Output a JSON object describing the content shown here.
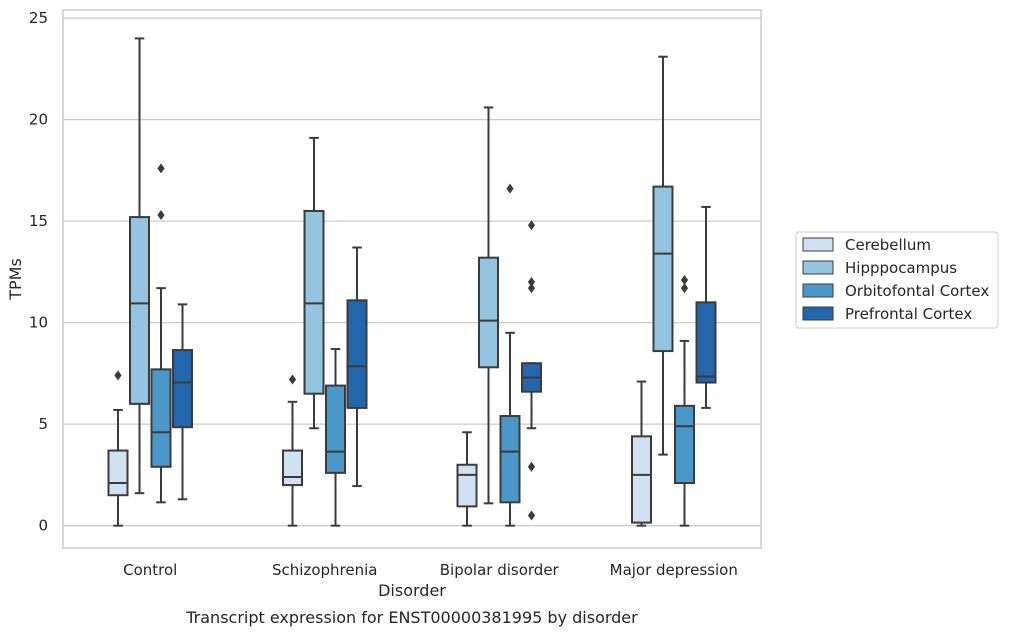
{
  "caption": "Transcript expression for ENST00000381995 by disorder",
  "chart_data": {
    "type": "box",
    "xlabel": "Disorder",
    "ylabel": "TPMs",
    "ylim": [
      -1.1,
      25.4
    ],
    "yticks": [
      0,
      5,
      10,
      15,
      20,
      25
    ],
    "grid": "horizontal",
    "legend_position": "right",
    "categories": [
      "Control",
      "Schizophrenia",
      "Bipolar disorder",
      "Major depression"
    ],
    "series": [
      {
        "name": "Cerebellum",
        "color": "#d0e1f2",
        "boxes": [
          {
            "whisker_low": 0.0,
            "q1": 1.5,
            "median": 2.1,
            "q3": 3.7,
            "whisker_high": 5.7,
            "outliers": [
              7.4
            ]
          },
          {
            "whisker_low": 0.0,
            "q1": 2.0,
            "median": 2.4,
            "q3": 3.7,
            "whisker_high": 6.1,
            "outliers": [
              7.2
            ]
          },
          {
            "whisker_low": 0.0,
            "q1": 0.95,
            "median": 2.5,
            "q3": 3.0,
            "whisker_high": 4.6,
            "outliers": []
          },
          {
            "whisker_low": 0.0,
            "q1": 0.15,
            "median": 2.5,
            "q3": 4.4,
            "whisker_high": 7.1,
            "outliers": []
          }
        ]
      },
      {
        "name": "Hipppocampus",
        "color": "#94c4df",
        "boxes": [
          {
            "whisker_low": 1.6,
            "q1": 6.0,
            "median": 10.95,
            "q3": 15.2,
            "whisker_high": 24.0,
            "outliers": []
          },
          {
            "whisker_low": 4.8,
            "q1": 6.5,
            "median": 10.95,
            "q3": 15.5,
            "whisker_high": 19.1,
            "outliers": []
          },
          {
            "whisker_low": 1.1,
            "q1": 7.8,
            "median": 10.1,
            "q3": 13.2,
            "whisker_high": 20.6,
            "outliers": []
          },
          {
            "whisker_low": 3.5,
            "q1": 8.6,
            "median": 13.4,
            "q3": 16.7,
            "whisker_high": 23.1,
            "outliers": []
          }
        ]
      },
      {
        "name": "Orbitofontal Cortex",
        "color": "#4a98c9",
        "boxes": [
          {
            "whisker_low": 1.15,
            "q1": 2.9,
            "median": 4.6,
            "q3": 7.7,
            "whisker_high": 11.7,
            "outliers": [
              15.3,
              17.6
            ]
          },
          {
            "whisker_low": 0.0,
            "q1": 2.6,
            "median": 3.65,
            "q3": 6.9,
            "whisker_high": 8.7,
            "outliers": []
          },
          {
            "whisker_low": 0.0,
            "q1": 1.15,
            "median": 3.65,
            "q3": 5.4,
            "whisker_high": 9.5,
            "outliers": [
              16.6
            ]
          },
          {
            "whisker_low": 0.0,
            "q1": 2.1,
            "median": 4.9,
            "q3": 5.9,
            "whisker_high": 9.1,
            "outliers": [
              11.7,
              12.1
            ]
          }
        ]
      },
      {
        "name": "Prefrontal Cortex",
        "color": "#2366ac",
        "boxes": [
          {
            "whisker_low": 1.3,
            "q1": 4.85,
            "median": 7.05,
            "q3": 8.65,
            "whisker_high": 10.9,
            "outliers": []
          },
          {
            "whisker_low": 1.95,
            "q1": 5.8,
            "median": 7.85,
            "q3": 11.1,
            "whisker_high": 13.7,
            "outliers": []
          },
          {
            "whisker_low": 4.8,
            "q1": 6.6,
            "median": 7.3,
            "q3": 8.0,
            "whisker_high": 8.0,
            "outliers": [
              0.5,
              2.9,
              11.7,
              12.0,
              14.8
            ]
          },
          {
            "whisker_low": 5.8,
            "q1": 7.05,
            "median": 7.35,
            "q3": 11.0,
            "whisker_high": 15.7,
            "outliers": []
          }
        ]
      }
    ]
  }
}
